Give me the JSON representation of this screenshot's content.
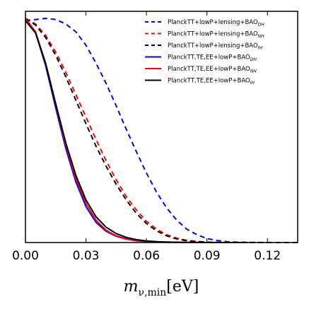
{
  "chart_data": {
    "type": "line",
    "title": "",
    "xlabel": {
      "main": "m",
      "subscript": "ν,min",
      "unit": "[eV]"
    },
    "ylabel": "",
    "xlim": [
      0.0,
      0.135
    ],
    "ylim": [
      0.0,
      1.0
    ],
    "x_ticks": [
      0.0,
      0.03,
      0.06,
      0.09,
      0.12
    ],
    "x_tick_labels": [
      "0.00",
      "0.03",
      "0.06",
      "0.09",
      "0.12"
    ],
    "y_ticks_visible": false,
    "grid": false,
    "legend": {
      "position": "top-right"
    },
    "series": [
      {
        "name": "PlanckTT+lowP+lensing+BAO",
        "name_sub": "DH",
        "color": "#0000ff",
        "dash": "dashed",
        "x": [
          0.0,
          0.005,
          0.01,
          0.015,
          0.02,
          0.025,
          0.03,
          0.035,
          0.04,
          0.045,
          0.05,
          0.055,
          0.06,
          0.065,
          0.07,
          0.075,
          0.08,
          0.085,
          0.09,
          0.095,
          0.1,
          0.105,
          0.11,
          0.115,
          0.12,
          0.125,
          0.13,
          0.135
        ],
        "y": [
          0.99,
          0.995,
          1.0,
          0.995,
          0.975,
          0.94,
          0.88,
          0.8,
          0.71,
          0.61,
          0.505,
          0.405,
          0.31,
          0.225,
          0.155,
          0.1,
          0.06,
          0.035,
          0.018,
          0.009,
          0.004,
          0.002,
          0.001,
          0.0005,
          0.0002,
          0.0001,
          0.0,
          0.0
        ]
      },
      {
        "name": "PlanckTT+lowP+lensing+BAO",
        "name_sub": "NH",
        "color": "#ff0000",
        "dash": "dashed",
        "x": [
          0.0,
          0.005,
          0.01,
          0.015,
          0.02,
          0.025,
          0.03,
          0.035,
          0.04,
          0.045,
          0.05,
          0.055,
          0.06,
          0.065,
          0.07,
          0.075,
          0.08,
          0.085,
          0.09,
          0.095,
          0.1,
          0.105,
          0.11,
          0.115,
          0.12
        ],
        "y": [
          1.0,
          0.975,
          0.925,
          0.85,
          0.76,
          0.66,
          0.56,
          0.46,
          0.365,
          0.28,
          0.205,
          0.145,
          0.095,
          0.06,
          0.035,
          0.02,
          0.01,
          0.005,
          0.002,
          0.001,
          0.0005,
          0.0002,
          0.0001,
          0.0,
          0.0
        ]
      },
      {
        "name": "PlanckTT+lowP+lensing+BAO",
        "name_sub": "IH",
        "color": "#000000",
        "dash": "dashed",
        "x": [
          0.0,
          0.005,
          0.01,
          0.015,
          0.02,
          0.025,
          0.03,
          0.035,
          0.04,
          0.045,
          0.05,
          0.055,
          0.06,
          0.065,
          0.07,
          0.075,
          0.08,
          0.085,
          0.09,
          0.095,
          0.1,
          0.105,
          0.11,
          0.115,
          0.12
        ],
        "y": [
          1.0,
          0.97,
          0.915,
          0.835,
          0.74,
          0.635,
          0.53,
          0.43,
          0.34,
          0.26,
          0.19,
          0.13,
          0.085,
          0.052,
          0.03,
          0.016,
          0.008,
          0.004,
          0.002,
          0.001,
          0.0005,
          0.0002,
          0.0001,
          0.0,
          0.0
        ]
      },
      {
        "name": "PlanckTT,TE,EE+lowP+BAO",
        "name_sub": "DH",
        "color": "#0000ff",
        "dash": "solid",
        "x": [
          0.0,
          0.005,
          0.01,
          0.015,
          0.02,
          0.025,
          0.03,
          0.035,
          0.04,
          0.045,
          0.05,
          0.055,
          0.06,
          0.065,
          0.07,
          0.075,
          0.08,
          0.085,
          0.09,
          0.095,
          0.1,
          0.105,
          0.11
        ],
        "y": [
          1.0,
          0.935,
          0.79,
          0.6,
          0.42,
          0.27,
          0.16,
          0.09,
          0.05,
          0.028,
          0.015,
          0.008,
          0.0045,
          0.0025,
          0.0013,
          0.0007,
          0.0003,
          0.0001,
          0.0,
          0.0,
          0.0,
          0.0,
          0.0
        ]
      },
      {
        "name": "PlanckTT,TE,EE+lowP+BAO",
        "name_sub": "NH",
        "color": "#ff0000",
        "dash": "solid",
        "x": [
          0.0,
          0.005,
          0.01,
          0.015,
          0.02,
          0.025,
          0.03,
          0.035,
          0.04,
          0.045,
          0.05,
          0.055,
          0.06,
          0.065,
          0.07,
          0.075,
          0.08,
          0.085,
          0.09,
          0.095,
          0.1,
          0.105,
          0.11
        ],
        "y": [
          1.0,
          0.94,
          0.8,
          0.615,
          0.435,
          0.285,
          0.175,
          0.1,
          0.055,
          0.03,
          0.017,
          0.009,
          0.005,
          0.0028,
          0.0015,
          0.0008,
          0.0004,
          0.0002,
          0.0001,
          0.0,
          0.0,
          0.0,
          0.0
        ]
      },
      {
        "name": "PlanckTT,TE,EE+lowP+BAO",
        "name_sub": "IH",
        "color": "#000000",
        "dash": "solid",
        "x": [
          0.0,
          0.005,
          0.01,
          0.015,
          0.02,
          0.025,
          0.03,
          0.035,
          0.04,
          0.045,
          0.05,
          0.055,
          0.06,
          0.065,
          0.07,
          0.075,
          0.08,
          0.085,
          0.09,
          0.095,
          0.1,
          0.105,
          0.11
        ],
        "y": [
          0.99,
          0.935,
          0.8,
          0.62,
          0.445,
          0.3,
          0.19,
          0.115,
          0.068,
          0.04,
          0.023,
          0.013,
          0.007,
          0.004,
          0.0022,
          0.0012,
          0.0006,
          0.0003,
          0.0001,
          0.0,
          0.0,
          0.0,
          0.0
        ]
      }
    ]
  }
}
